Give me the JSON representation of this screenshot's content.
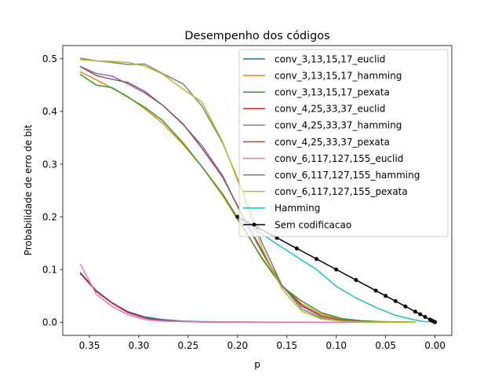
{
  "chart_data": {
    "type": "line",
    "title": "Desempenho dos códigos",
    "xlabel": "p",
    "ylabel": "Probabilidade de erro de bit",
    "xlim": [
      0.377,
      -0.017
    ],
    "ylim": [
      -0.025,
      0.525
    ],
    "x_inverted": true,
    "grid": false,
    "legend_position": "top-right",
    "xticks": [
      0.35,
      0.3,
      0.25,
      0.2,
      0.15,
      0.1,
      0.05,
      0.0
    ],
    "xtick_labels": [
      "0.35",
      "0.30",
      "0.25",
      "0.20",
      "0.15",
      "0.10",
      "0.05",
      "0.00"
    ],
    "yticks": [
      0.0,
      0.1,
      0.2,
      0.3,
      0.4,
      0.5
    ],
    "ytick_labels": [
      "0.0",
      "0.1",
      "0.2",
      "0.3",
      "0.4",
      "0.5"
    ],
    "series": [
      {
        "name": "conv_3,13,15,17_euclid",
        "color": "#1f77b4",
        "marker": false,
        "x": [
          0.359,
          0.343,
          0.327,
          0.311,
          0.294,
          0.276,
          0.255,
          0.236,
          0.215,
          0.195,
          0.175,
          0.155,
          0.135,
          0.115,
          0.095,
          0.075,
          0.055,
          0.035,
          0.02
        ],
        "y": [
          0.094,
          0.06,
          0.037,
          0.02,
          0.01,
          0.005,
          0.002,
          0.001,
          0.0005,
          0.0003,
          0.0002,
          0.0001,
          0.0001,
          0.0,
          0.0,
          0.0,
          0.0,
          0.0,
          0.0
        ]
      },
      {
        "name": "conv_3,13,15,17_hamming",
        "color": "#ff7f0e",
        "marker": false,
        "x": [
          0.359,
          0.343,
          0.327,
          0.311,
          0.294,
          0.276,
          0.255,
          0.236,
          0.215,
          0.195,
          0.175,
          0.155,
          0.135,
          0.115,
          0.095,
          0.075,
          0.055,
          0.035,
          0.02
        ],
        "y": [
          0.475,
          0.46,
          0.444,
          0.428,
          0.405,
          0.378,
          0.337,
          0.295,
          0.24,
          0.18,
          0.122,
          0.07,
          0.035,
          0.015,
          0.006,
          0.002,
          0.001,
          0.0003,
          0.0001
        ]
      },
      {
        "name": "conv_3,13,15,17_pexata",
        "color": "#2ca02c",
        "marker": false,
        "x": [
          0.359,
          0.343,
          0.327,
          0.311,
          0.294,
          0.276,
          0.255,
          0.236,
          0.215,
          0.195,
          0.175,
          0.155,
          0.135,
          0.115,
          0.095,
          0.075,
          0.055,
          0.035,
          0.02
        ],
        "y": [
          0.47,
          0.45,
          0.445,
          0.427,
          0.408,
          0.383,
          0.34,
          0.295,
          0.243,
          0.183,
          0.12,
          0.068,
          0.04,
          0.018,
          0.007,
          0.003,
          0.001,
          0.0003,
          0.0001
        ]
      },
      {
        "name": "conv_4,25,33,37_euclid",
        "color": "#d62728",
        "marker": false,
        "x": [
          0.359,
          0.343,
          0.327,
          0.311,
          0.294,
          0.276,
          0.255,
          0.236,
          0.215,
          0.195,
          0.175,
          0.155,
          0.135,
          0.115,
          0.095,
          0.075,
          0.055,
          0.035,
          0.02
        ],
        "y": [
          0.092,
          0.058,
          0.036,
          0.018,
          0.008,
          0.003,
          0.001,
          0.0005,
          0.0002,
          0.0001,
          0.0,
          0.0,
          0.0,
          0.0,
          0.0,
          0.0,
          0.0,
          0.0,
          0.0
        ]
      },
      {
        "name": "conv_4,25,33,37_hamming",
        "color": "#9467bd",
        "marker": false,
        "x": [
          0.359,
          0.343,
          0.327,
          0.311,
          0.294,
          0.276,
          0.255,
          0.236,
          0.215,
          0.195,
          0.175,
          0.155,
          0.135,
          0.115,
          0.095,
          0.075,
          0.055,
          0.035,
          0.02
        ],
        "y": [
          0.485,
          0.472,
          0.467,
          0.452,
          0.435,
          0.412,
          0.375,
          0.335,
          0.278,
          0.2,
          0.132,
          0.068,
          0.03,
          0.011,
          0.004,
          0.001,
          0.0003,
          0.0001,
          0.0
        ]
      },
      {
        "name": "conv_4,25,33,37_pexata",
        "color": "#8c564b",
        "marker": false,
        "x": [
          0.359,
          0.343,
          0.327,
          0.311,
          0.294,
          0.276,
          0.255,
          0.236,
          0.215,
          0.195,
          0.175,
          0.155,
          0.135,
          0.115,
          0.095,
          0.075,
          0.055,
          0.035,
          0.02
        ],
        "y": [
          0.485,
          0.468,
          0.461,
          0.455,
          0.438,
          0.412,
          0.376,
          0.33,
          0.275,
          0.203,
          0.135,
          0.07,
          0.032,
          0.012,
          0.004,
          0.001,
          0.0003,
          0.0001,
          0.0
        ]
      },
      {
        "name": "conv_6,117,127,155_euclid",
        "color": "#e377c2",
        "marker": false,
        "x": [
          0.359,
          0.343,
          0.327,
          0.311,
          0.294,
          0.276,
          0.255,
          0.236,
          0.215,
          0.195,
          0.175,
          0.155,
          0.135,
          0.115,
          0.095,
          0.075,
          0.055,
          0.035,
          0.02
        ],
        "y": [
          0.11,
          0.053,
          0.03,
          0.014,
          0.005,
          0.002,
          0.001,
          0.0003,
          0.0001,
          0.0,
          0.0,
          0.0,
          0.0,
          0.0,
          0.0,
          0.0,
          0.0,
          0.0,
          0.0
        ]
      },
      {
        "name": "conv_6,117,127,155_hamming",
        "color": "#7f7f7f",
        "marker": false,
        "x": [
          0.359,
          0.343,
          0.327,
          0.311,
          0.294,
          0.276,
          0.255,
          0.236,
          0.215,
          0.195,
          0.175,
          0.155,
          0.135,
          0.115,
          0.095,
          0.075,
          0.055,
          0.035,
          0.02
        ],
        "y": [
          0.501,
          0.496,
          0.493,
          0.489,
          0.49,
          0.472,
          0.452,
          0.41,
          0.34,
          0.25,
          0.15,
          0.07,
          0.025,
          0.008,
          0.002,
          0.0005,
          0.0001,
          0.0,
          0.0
        ]
      },
      {
        "name": "conv_6,117,127,155_pexata",
        "color": "#bcbd22",
        "marker": false,
        "x": [
          0.359,
          0.343,
          0.327,
          0.311,
          0.294,
          0.276,
          0.255,
          0.236,
          0.215,
          0.195,
          0.175,
          0.155,
          0.135,
          0.115,
          0.095,
          0.075,
          0.055,
          0.035,
          0.02
        ],
        "y": [
          0.498,
          0.496,
          0.495,
          0.493,
          0.486,
          0.471,
          0.442,
          0.418,
          0.342,
          0.245,
          0.14,
          0.063,
          0.021,
          0.006,
          0.002,
          0.0005,
          0.0001,
          0.0,
          0.0
        ]
      },
      {
        "name": "Hamming",
        "color": "#17becf",
        "marker": false,
        "x": [
          0.2,
          0.18,
          0.16,
          0.14,
          0.12,
          0.1,
          0.08,
          0.06,
          0.04,
          0.02,
          0.01,
          0.0
        ],
        "y": [
          0.2,
          0.173,
          0.148,
          0.124,
          0.1,
          0.068,
          0.046,
          0.028,
          0.013,
          0.004,
          0.001,
          0.0
        ]
      },
      {
        "name": "Sem codificacao",
        "color": "#000000",
        "marker": true,
        "x": [
          0.2,
          0.18,
          0.16,
          0.14,
          0.12,
          0.1,
          0.08,
          0.06,
          0.05,
          0.04,
          0.03,
          0.02,
          0.015,
          0.01,
          0.005,
          0.003,
          0.001,
          0.0
        ],
        "y": [
          0.2,
          0.18,
          0.16,
          0.14,
          0.12,
          0.1,
          0.08,
          0.06,
          0.05,
          0.04,
          0.03,
          0.02,
          0.015,
          0.01,
          0.005,
          0.003,
          0.001,
          0.0
        ]
      }
    ]
  }
}
